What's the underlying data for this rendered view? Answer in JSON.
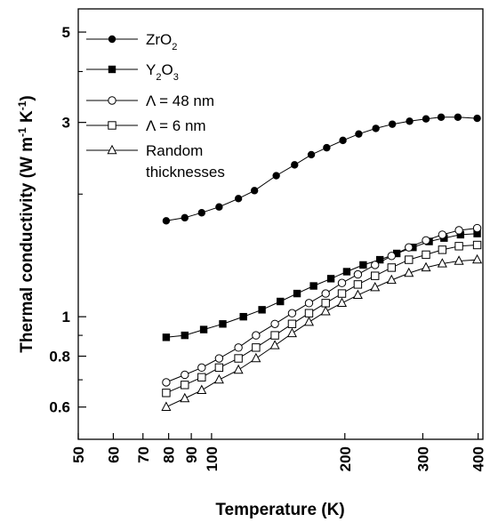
{
  "chart_data": {
    "type": "line",
    "xlabel": "Temperature (K)",
    "ylabel_parts": [
      "Thermal conductivity (W m",
      "-1",
      " K",
      "-1",
      ")"
    ],
    "x_scale": "log",
    "y_scale": "log",
    "xlim": [
      50,
      410
    ],
    "ylim": [
      0.5,
      5.7
    ],
    "x_ticks": [
      50,
      60,
      70,
      80,
      90,
      100,
      200,
      300,
      400
    ],
    "x_tick_labels": [
      "50",
      "60",
      "70",
      "80",
      "90",
      "100",
      "200",
      "300",
      "400"
    ],
    "y_major_ticks": [
      0.6,
      0.8,
      1,
      3,
      5
    ],
    "y_tick_labels": [
      "0.6",
      "0.8",
      "1",
      "3",
      "5"
    ],
    "y_minor_ticks": [
      0.7,
      0.9,
      2,
      4
    ],
    "grid": false,
    "legend_position": "top-left",
    "series": [
      {
        "legend_parts": [
          [
            "ZrO",
            false
          ],
          [
            "2",
            true
          ]
        ],
        "marker": "filled-circle",
        "x": [
          79,
          87,
          95,
          104,
          115,
          125,
          140,
          154,
          168,
          182,
          198,
          215,
          235,
          256,
          280,
          305,
          330,
          360,
          398
        ],
        "y": [
          1.72,
          1.75,
          1.8,
          1.86,
          1.95,
          2.04,
          2.22,
          2.36,
          2.5,
          2.6,
          2.71,
          2.81,
          2.9,
          2.97,
          3.02,
          3.06,
          3.09,
          3.09,
          3.07
        ]
      },
      {
        "legend_parts": [
          [
            "Y",
            false
          ],
          [
            "2",
            true
          ],
          [
            "O",
            false
          ],
          [
            "3",
            true
          ]
        ],
        "marker": "filled-square",
        "x": [
          79,
          87,
          96,
          106,
          118,
          130,
          143,
          156,
          170,
          186,
          202,
          220,
          240,
          262,
          285,
          310,
          335,
          365,
          398
        ],
        "y": [
          0.89,
          0.9,
          0.93,
          0.96,
          1.0,
          1.04,
          1.09,
          1.14,
          1.19,
          1.24,
          1.29,
          1.34,
          1.38,
          1.43,
          1.48,
          1.53,
          1.56,
          1.59,
          1.6
        ]
      },
      {
        "legend_parts": [
          [
            "Λ  = 48 nm",
            false
          ]
        ],
        "marker": "open-circle",
        "x": [
          79,
          87,
          95,
          104,
          115,
          126,
          139,
          152,
          166,
          181,
          197,
          214,
          234,
          255,
          279,
          305,
          332,
          362,
          398
        ],
        "y": [
          0.69,
          0.72,
          0.75,
          0.79,
          0.84,
          0.9,
          0.96,
          1.02,
          1.08,
          1.14,
          1.21,
          1.27,
          1.34,
          1.41,
          1.48,
          1.54,
          1.59,
          1.63,
          1.65
        ]
      },
      {
        "legend_parts": [
          [
            "Λ  = 6 nm",
            false
          ]
        ],
        "marker": "open-square",
        "x": [
          79,
          87,
          95,
          104,
          115,
          126,
          139,
          152,
          166,
          181,
          197,
          214,
          234,
          255,
          279,
          305,
          332,
          362,
          398
        ],
        "y": [
          0.65,
          0.68,
          0.71,
          0.75,
          0.79,
          0.84,
          0.9,
          0.96,
          1.02,
          1.08,
          1.14,
          1.2,
          1.26,
          1.32,
          1.38,
          1.42,
          1.46,
          1.49,
          1.5
        ]
      },
      {
        "legend_parts": [
          [
            "Random",
            false
          ]
        ],
        "legend_line2": "thicknesses",
        "marker": "open-triangle",
        "x": [
          79,
          87,
          95,
          104,
          115,
          126,
          139,
          152,
          166,
          181,
          197,
          214,
          234,
          255,
          279,
          305,
          332,
          362,
          398
        ],
        "y": [
          0.6,
          0.63,
          0.66,
          0.7,
          0.74,
          0.79,
          0.85,
          0.91,
          0.97,
          1.03,
          1.08,
          1.13,
          1.18,
          1.23,
          1.28,
          1.32,
          1.35,
          1.37,
          1.38
        ]
      }
    ]
  }
}
